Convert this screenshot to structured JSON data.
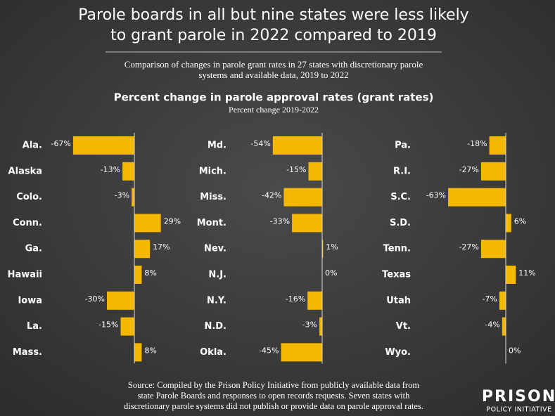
{
  "header": {
    "title": [
      "Parole boards in all but nine states were less likely",
      "to grant parole in 2022 compared to 2019"
    ],
    "subtitle": [
      "Comparison of changes in parole grant rates in 27 states with discretionary parole",
      "systems and available data, 2019 to 2022"
    ],
    "chart_title": "Percent change in parole approval rates (grant rates)",
    "chart_subtitle": "Percent change 2019-2022"
  },
  "chart_data": [
    {
      "type": "bar",
      "orientation": "horizontal",
      "color": "#f5b800",
      "xlim": [
        -70,
        30
      ],
      "categories": [
        "Ala.",
        "Alaska",
        "Colo.",
        "Conn.",
        "Ga.",
        "Hawaii",
        "Iowa",
        "La.",
        "Mass."
      ],
      "values": [
        -67,
        -13,
        -3,
        29,
        17,
        8,
        -30,
        -15,
        8
      ],
      "value_labels": [
        "-67%",
        "-13%",
        "-3%",
        "29%",
        "17%",
        "8%",
        "-30%",
        "-15%",
        "8%"
      ]
    },
    {
      "type": "bar",
      "orientation": "horizontal",
      "color": "#f5b800",
      "xlim": [
        -70,
        30
      ],
      "categories": [
        "Md.",
        "Mich.",
        "Miss.",
        "Mont.",
        "Nev.",
        "N.J.",
        "N.Y.",
        "N.D.",
        "Okla."
      ],
      "values": [
        -54,
        -15,
        -42,
        -33,
        1,
        0,
        -16,
        -3,
        -45
      ],
      "value_labels": [
        "-54%",
        "-15%",
        "-42%",
        "-33%",
        "1%",
        "0%",
        "-16%",
        "-3%",
        "-45%"
      ]
    },
    {
      "type": "bar",
      "orientation": "horizontal",
      "color": "#f5b800",
      "xlim": [
        -70,
        30
      ],
      "categories": [
        "Pa.",
        "R.I.",
        "S.C.",
        "S.D.",
        "Tenn.",
        "Texas",
        "Utah",
        "Vt.",
        "Wyo."
      ],
      "values": [
        -18,
        -27,
        -63,
        6,
        -27,
        11,
        -7,
        -4,
        0
      ],
      "value_labels": [
        "-18%",
        "-27%",
        "-63%",
        "6%",
        "-27%",
        "11%",
        "-7%",
        "-4%",
        "0%"
      ]
    }
  ],
  "footer": {
    "source": [
      "Source: Compiled by the Prison Policy Initiative from publicly available data from",
      "state Parole Boards and responses to open records requests. Seven states with",
      "discretionary parole systems did not publish or provide data on parole approval rates."
    ],
    "logo": [
      "PRISON",
      "POLICY INITIATIVE"
    ]
  }
}
